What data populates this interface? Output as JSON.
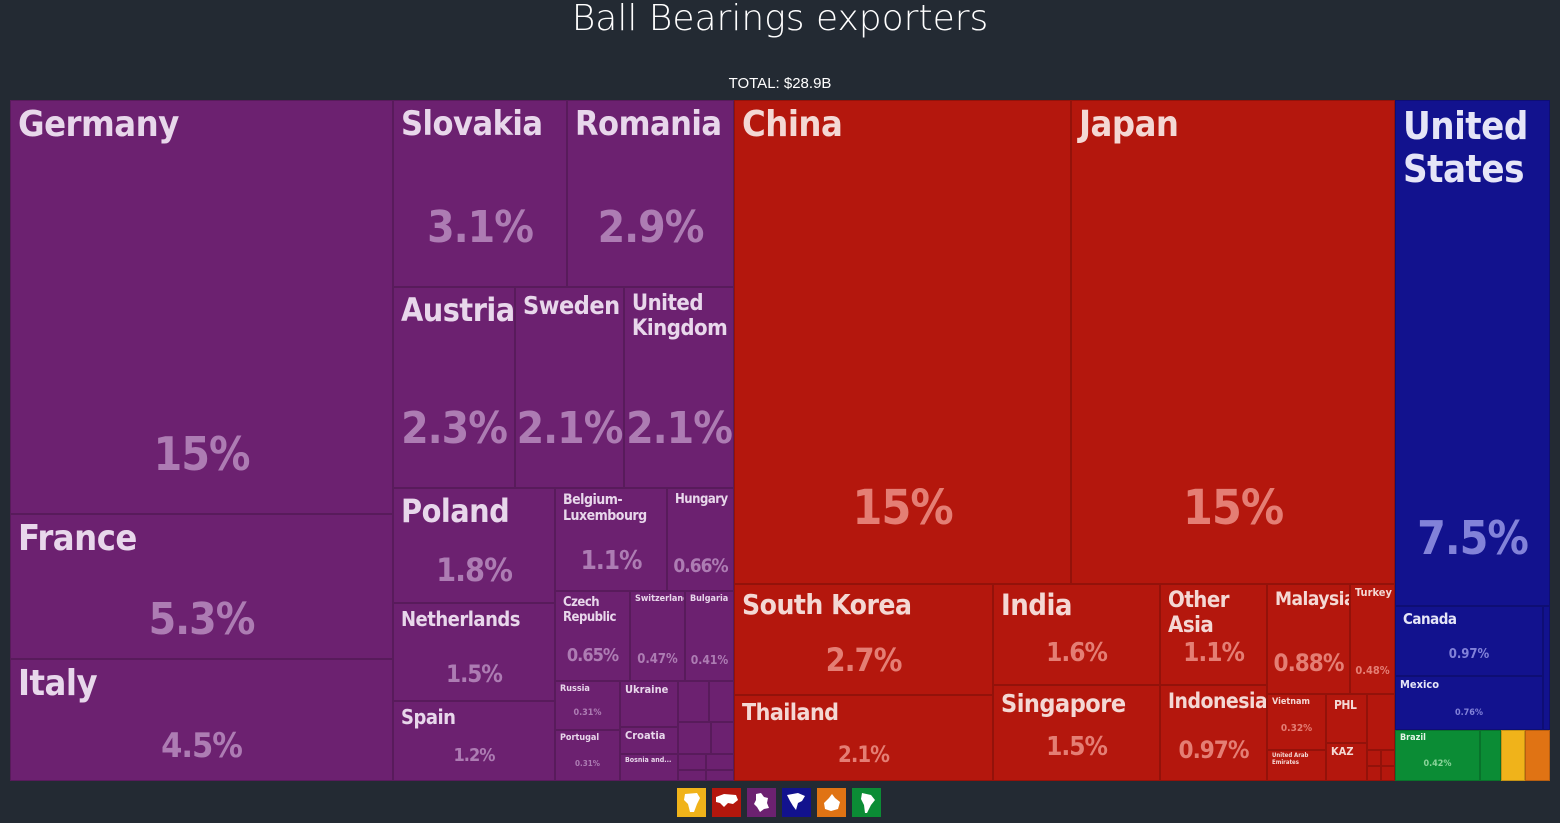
{
  "title": "Ball Bearings exporters",
  "total_label": "TOTAL: $28.9B",
  "colors": {
    "europe": "#6c2170",
    "asia": "#b4170d",
    "north_america": "#12128e",
    "south_america": "#0b8c35",
    "africa": "#f0b31a",
    "oceania": "#e07314"
  },
  "legend": [
    {
      "name": "africa-icon",
      "color": "#f0b31a"
    },
    {
      "name": "asia-icon",
      "color": "#b4170d"
    },
    {
      "name": "europe-icon",
      "color": "#6c2170"
    },
    {
      "name": "north-america-icon",
      "color": "#12128e"
    },
    {
      "name": "oceania-icon",
      "color": "#e07314"
    },
    {
      "name": "south-america-icon",
      "color": "#0b8c35"
    }
  ],
  "chart_data": {
    "type": "treemap",
    "title": "Ball Bearings exporters",
    "total": "TOTAL: $28.9B",
    "items": [
      {
        "name": "Germany",
        "region": "europe",
        "share": "15%"
      },
      {
        "name": "France",
        "region": "europe",
        "share": "5.3%"
      },
      {
        "name": "Italy",
        "region": "europe",
        "share": "4.5%"
      },
      {
        "name": "Slovakia",
        "region": "europe",
        "share": "3.1%"
      },
      {
        "name": "Romania",
        "region": "europe",
        "share": "2.9%"
      },
      {
        "name": "Austria",
        "region": "europe",
        "share": "2.3%"
      },
      {
        "name": "Sweden",
        "region": "europe",
        "share": "2.1%"
      },
      {
        "name": "United Kingdom",
        "region": "europe",
        "share": "2.1%"
      },
      {
        "name": "Poland",
        "region": "europe",
        "share": "1.8%"
      },
      {
        "name": "Belgium-Luxembourg",
        "region": "europe",
        "share": "1.1%"
      },
      {
        "name": "Hungary",
        "region": "europe",
        "share": "0.66%"
      },
      {
        "name": "Netherlands",
        "region": "europe",
        "share": "1.5%"
      },
      {
        "name": "Czech Republic",
        "region": "europe",
        "share": "0.65%"
      },
      {
        "name": "Switzerland",
        "region": "europe",
        "share": "0.47%"
      },
      {
        "name": "Bulgaria",
        "region": "europe",
        "share": "0.41%"
      },
      {
        "name": "Spain",
        "region": "europe",
        "share": "1.2%"
      },
      {
        "name": "Russia",
        "region": "europe",
        "share": "0.31%"
      },
      {
        "name": "Ukraine",
        "region": "europe",
        "share": ""
      },
      {
        "name": "Portugal",
        "region": "europe",
        "share": "0.31%"
      },
      {
        "name": "Croatia",
        "region": "europe",
        "share": ""
      },
      {
        "name": "Bosnia and...",
        "region": "europe",
        "share": ""
      },
      {
        "name": "China",
        "region": "asia",
        "share": "15%"
      },
      {
        "name": "Japan",
        "region": "asia",
        "share": "15%"
      },
      {
        "name": "South Korea",
        "region": "asia",
        "share": "2.7%"
      },
      {
        "name": "Thailand",
        "region": "asia",
        "share": "2.1%"
      },
      {
        "name": "India",
        "region": "asia",
        "share": "1.6%"
      },
      {
        "name": "Singapore",
        "region": "asia",
        "share": "1.5%"
      },
      {
        "name": "Other Asia",
        "region": "asia",
        "share": "1.1%"
      },
      {
        "name": "Indonesia",
        "region": "asia",
        "share": "0.97%"
      },
      {
        "name": "Malaysia",
        "region": "asia",
        "share": "0.88%"
      },
      {
        "name": "Turkey",
        "region": "asia",
        "share": "0.48%"
      },
      {
        "name": "Vietnam",
        "region": "asia",
        "share": "0.32%"
      },
      {
        "name": "PHL",
        "region": "asia",
        "share": ""
      },
      {
        "name": "United Arab Emirates",
        "region": "asia",
        "share": ""
      },
      {
        "name": "KAZ",
        "region": "asia",
        "share": ""
      },
      {
        "name": "United States",
        "region": "north_america",
        "share": "7.5%"
      },
      {
        "name": "Canada",
        "region": "north_america",
        "share": "0.97%"
      },
      {
        "name": "Mexico",
        "region": "north_america",
        "share": "0.76%"
      },
      {
        "name": "Brazil",
        "region": "south_america",
        "share": "0.42%"
      }
    ]
  }
}
